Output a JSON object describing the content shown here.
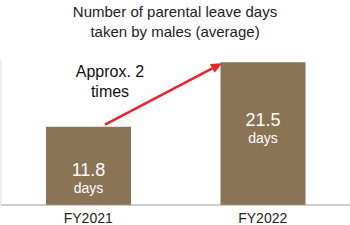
{
  "chart_data": {
    "type": "bar",
    "title": "Number of parental leave days taken by males (average)",
    "categories": [
      "FY2021",
      "FY2022"
    ],
    "values": [
      11.8,
      21.5
    ],
    "value_labels": [
      "11.8 days",
      "21.5 days"
    ],
    "color": "#8b7355",
    "ylim": [
      0,
      22
    ],
    "data_labels": true,
    "tick_labels": "x",
    "annotation": "Approx. 2 times"
  }
}
